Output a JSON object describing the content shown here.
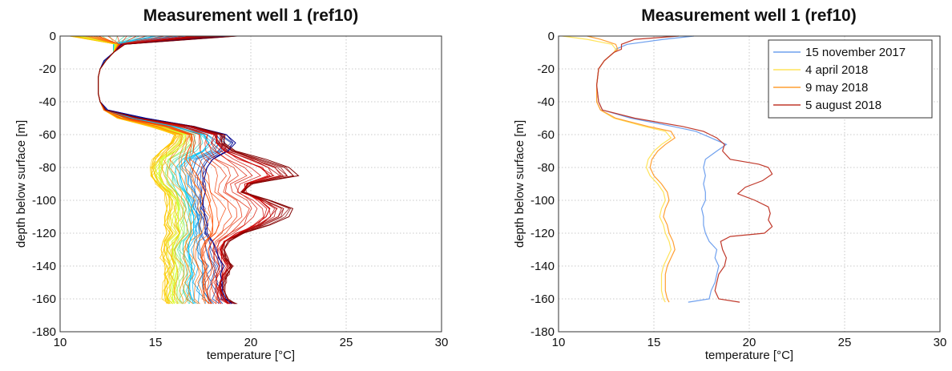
{
  "chart_data": [
    {
      "type": "line",
      "title": "Measurement well 1 (ref10)",
      "xlabel": "temperature [°C]",
      "ylabel": "depth below surface [m]",
      "xlim": [
        10,
        30
      ],
      "ylim": [
        -180,
        0
      ],
      "xticks": [
        "10",
        "15",
        "20",
        "25",
        "30"
      ],
      "yticks": [
        "0",
        "-20",
        "-40",
        "-60",
        "-80",
        "-100",
        "-120",
        "-140",
        "-160",
        "-180"
      ],
      "grid": true,
      "legend": "none",
      "colormap": [
        "#00008f",
        "#0050ff",
        "#00c8ff",
        "#50ffaf",
        "#d4ff2b",
        "#ffc800",
        "#ff5000",
        "#cc0000",
        "#800000"
      ],
      "profile_depth": [
        0,
        -5,
        -10,
        -15,
        -20,
        -25,
        -30,
        -35,
        -40,
        -45,
        -50,
        -55,
        -60,
        -65,
        -70,
        -75,
        -80,
        -85,
        -90,
        -95,
        -100,
        -105,
        -110,
        -115,
        -120,
        -125,
        -130,
        -135,
        -140,
        -145,
        -150,
        -155,
        -160,
        -163
      ],
      "series": [
        {
          "color": "#00008f",
          "values": [
            19.2,
            13.2,
            12.8,
            12.3,
            12.1,
            12.0,
            12.0,
            12.0,
            12.1,
            12.5,
            14.5,
            17.0,
            18.7,
            19.2,
            18.8,
            18.0,
            17.7,
            17.6,
            17.5,
            17.6,
            17.5,
            17.5,
            17.6,
            17.7,
            17.7,
            18.0,
            18.2,
            18.3,
            18.6,
            18.4,
            18.5,
            18.5,
            18.7,
            19.0
          ]
        },
        {
          "color": "#00c8ff",
          "values": [
            15.0,
            12.8,
            12.8,
            12.4,
            12.1,
            12.0,
            12.0,
            12.0,
            12.1,
            12.4,
            13.8,
            16.0,
            17.5,
            17.8,
            17.5,
            16.6,
            16.3,
            16.3,
            16.4,
            16.6,
            16.8,
            16.9,
            17.0,
            17.0,
            17.0,
            16.8,
            16.7,
            16.8,
            16.9,
            16.9,
            16.8,
            16.8,
            16.9,
            17.0
          ]
        },
        {
          "color": "#d4ff2b",
          "values": [
            11.0,
            12.9,
            12.8,
            12.4,
            12.1,
            12.0,
            12.0,
            12.0,
            12.1,
            12.3,
            13.3,
            15.3,
            16.6,
            16.5,
            16.0,
            15.4,
            15.2,
            15.2,
            15.4,
            15.8,
            16.1,
            16.2,
            16.2,
            16.2,
            16.3,
            16.0,
            15.9,
            16.0,
            16.1,
            16.1,
            16.0,
            15.9,
            15.9,
            16.0
          ]
        },
        {
          "color": "#ffc800",
          "values": [
            10.5,
            13.0,
            12.8,
            12.4,
            12.1,
            12.0,
            12.0,
            12.0,
            12.1,
            12.3,
            13.0,
            14.8,
            16.0,
            15.8,
            15.3,
            14.9,
            14.8,
            14.8,
            15.1,
            15.5,
            15.6,
            15.6,
            15.5,
            15.5,
            15.6,
            15.4,
            15.3,
            15.4,
            15.5,
            15.5,
            15.5,
            15.5,
            15.5,
            15.6
          ]
        },
        {
          "color": "#ff5000",
          "values": [
            12.0,
            13.1,
            12.8,
            12.4,
            12.1,
            12.0,
            12.0,
            12.0,
            12.1,
            12.3,
            13.2,
            15.5,
            16.9,
            16.9,
            16.7,
            16.6,
            16.9,
            17.2,
            17.4,
            17.6,
            17.8,
            17.9,
            18.0,
            18.0,
            18.0,
            17.6,
            17.4,
            17.4,
            17.6,
            17.6,
            17.5,
            17.5,
            17.6,
            17.8
          ]
        },
        {
          "color": "#cc0000",
          "values": [
            17.0,
            13.3,
            12.8,
            12.4,
            12.1,
            12.0,
            12.0,
            12.0,
            12.1,
            12.4,
            14.0,
            16.8,
            18.2,
            18.2,
            18.6,
            19.5,
            20.5,
            21.0,
            19.8,
            19.6,
            20.5,
            21.0,
            20.8,
            20.2,
            19.4,
            18.6,
            18.4,
            18.5,
            18.8,
            18.6,
            18.4,
            18.4,
            18.6,
            18.8
          ]
        },
        {
          "color": "#800000",
          "values": [
            19.3,
            13.4,
            12.8,
            12.4,
            12.1,
            12.0,
            12.0,
            12.0,
            12.1,
            12.4,
            14.2,
            17.0,
            18.6,
            18.6,
            19.2,
            20.8,
            22.0,
            22.5,
            20.0,
            19.6,
            21.0,
            22.2,
            22.0,
            21.0,
            19.6,
            18.8,
            18.6,
            18.7,
            19.0,
            18.8,
            18.6,
            18.6,
            18.8,
            19.2
          ]
        }
      ]
    },
    {
      "type": "line",
      "title": "Measurement well 1 (ref10)",
      "xlabel": "temperature [°C]",
      "ylabel": "depth below surface [m]",
      "xlim": [
        10,
        30
      ],
      "ylim": [
        -180,
        0
      ],
      "xticks": [
        "10",
        "15",
        "20",
        "25",
        "30"
      ],
      "yticks": [
        "0",
        "-20",
        "-40",
        "-60",
        "-80",
        "-100",
        "-120",
        "-140",
        "-160",
        "-180"
      ],
      "grid": true,
      "legend": "top-right",
      "series": [
        {
          "name": "15 november 2017",
          "color": "#6fa0ee",
          "depth": [
            0,
            -2,
            -5,
            -8,
            -10,
            -15,
            -20,
            -30,
            -40,
            -45,
            -50,
            -55,
            -58,
            -62,
            -66,
            -70,
            -75,
            -80,
            -85,
            -90,
            -95,
            -100,
            -105,
            -110,
            -115,
            -120,
            -125,
            -130,
            -135,
            -140,
            -145,
            -150,
            -155,
            -160,
            -162
          ],
          "values": [
            17.1,
            15.5,
            13.6,
            13.0,
            12.9,
            12.4,
            12.1,
            12.0,
            12.1,
            12.3,
            13.8,
            16.0,
            17.2,
            18.0,
            18.8,
            18.3,
            17.7,
            17.6,
            17.7,
            17.6,
            17.7,
            17.7,
            17.5,
            17.6,
            17.6,
            17.7,
            17.9,
            18.3,
            18.2,
            18.4,
            18.3,
            18.2,
            18.0,
            17.9,
            16.8
          ]
        },
        {
          "name": "4 april 2018",
          "color": "#ffe45a",
          "depth": [
            0,
            -2,
            -5,
            -8,
            -10,
            -15,
            -20,
            -30,
            -40,
            -45,
            -50,
            -55,
            -58,
            -62,
            -66,
            -70,
            -75,
            -80,
            -85,
            -90,
            -95,
            -100,
            -105,
            -110,
            -115,
            -120,
            -125,
            -130,
            -135,
            -140,
            -145,
            -150,
            -155,
            -160,
            -162
          ],
          "values": [
            10.2,
            11.5,
            12.8,
            13.0,
            12.9,
            12.4,
            12.1,
            12.0,
            12.0,
            12.2,
            12.9,
            14.5,
            15.6,
            15.9,
            15.4,
            15.0,
            14.7,
            14.6,
            14.8,
            15.2,
            15.5,
            15.6,
            15.4,
            15.3,
            15.5,
            15.6,
            15.8,
            15.9,
            15.7,
            15.5,
            15.4,
            15.4,
            15.4,
            15.5,
            15.6
          ]
        },
        {
          "name": "9 may 2018",
          "color": "#ff9f33",
          "depth": [
            0,
            -2,
            -5,
            -8,
            -10,
            -15,
            -20,
            -30,
            -40,
            -45,
            -50,
            -55,
            -58,
            -62,
            -66,
            -70,
            -75,
            -80,
            -85,
            -90,
            -95,
            -100,
            -105,
            -110,
            -115,
            -120,
            -125,
            -130,
            -135,
            -140,
            -145,
            -150,
            -155,
            -160,
            -162
          ],
          "values": [
            11.5,
            12.2,
            13.0,
            13.1,
            12.9,
            12.4,
            12.1,
            12.0,
            12.0,
            12.2,
            13.0,
            14.7,
            15.9,
            16.1,
            15.6,
            15.2,
            14.9,
            14.8,
            15.0,
            15.4,
            15.7,
            15.8,
            15.6,
            15.5,
            15.7,
            15.8,
            16.0,
            16.1,
            15.9,
            15.7,
            15.6,
            15.6,
            15.6,
            15.7,
            15.8
          ]
        },
        {
          "name": "5 august 2018",
          "color": "#c0392b",
          "depth": [
            0,
            -2,
            -5,
            -8,
            -10,
            -15,
            -20,
            -30,
            -40,
            -45,
            -50,
            -55,
            -58,
            -62,
            -66,
            -70,
            -75,
            -78,
            -80,
            -84,
            -88,
            -92,
            -96,
            -100,
            -104,
            -108,
            -112,
            -116,
            -120,
            -122,
            -125,
            -130,
            -135,
            -140,
            -145,
            -150,
            -155,
            -160,
            -162
          ],
          "values": [
            16.3,
            14.0,
            13.3,
            13.3,
            12.9,
            12.4,
            12.1,
            12.0,
            12.1,
            12.3,
            14.0,
            16.5,
            17.6,
            18.3,
            18.7,
            18.6,
            19.0,
            20.5,
            21.0,
            21.2,
            20.7,
            19.8,
            19.4,
            20.3,
            21.0,
            21.1,
            21.0,
            21.2,
            20.8,
            19.0,
            18.5,
            18.6,
            18.8,
            18.7,
            18.4,
            18.3,
            18.2,
            18.4,
            19.5
          ]
        }
      ]
    }
  ]
}
